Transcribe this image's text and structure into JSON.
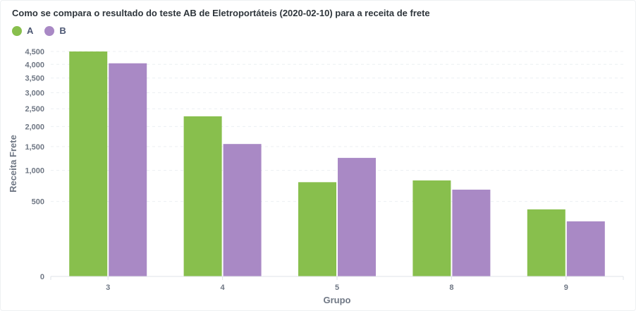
{
  "chart_data": {
    "type": "bar",
    "title": "Como se compara o resultado do teste AB de Eletroportáteis (2020-02-10) para a receita de frete",
    "xlabel": "Grupo",
    "ylabel": "Receita Frete",
    "scale": "sqrt",
    "categories": [
      "3",
      "4",
      "5",
      "8",
      "9"
    ],
    "series": [
      {
        "name": "A",
        "color": "#88bf4d",
        "values": [
          4500,
          2280,
          790,
          820,
          400
        ]
      },
      {
        "name": "B",
        "color": "#a989c5",
        "values": [
          4040,
          1560,
          1250,
          670,
          270
        ]
      }
    ],
    "yticks": [
      0,
      500,
      1000,
      1500,
      2000,
      2500,
      3000,
      3500,
      4000,
      4500
    ],
    "ytick_labels": [
      "0",
      "500",
      "1,000",
      "1,500",
      "2,000",
      "2,500",
      "3,000",
      "3,500",
      "4,000",
      "4,500"
    ],
    "ylim": [
      0,
      4700
    ],
    "grid": true,
    "legend_position": "top-left"
  }
}
